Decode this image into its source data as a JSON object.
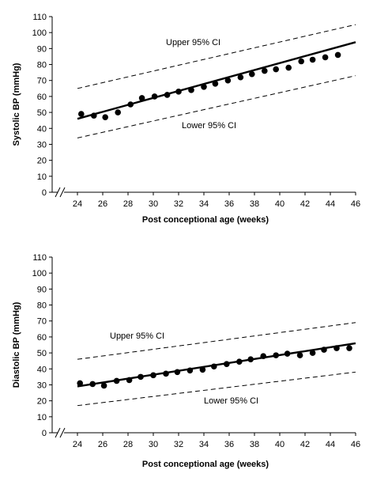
{
  "chart_data": [
    {
      "type": "scatter",
      "title": "",
      "xlabel": "Post conceptional age (weeks)",
      "ylabel": "Systolic BP (mmHg)",
      "xlim": [
        22,
        46
      ],
      "ylim": [
        0,
        110
      ],
      "xticks": [
        24,
        26,
        28,
        30,
        32,
        34,
        36,
        38,
        40,
        42,
        44,
        46
      ],
      "yticks": [
        0,
        10,
        20,
        30,
        40,
        50,
        60,
        70,
        80,
        90,
        100,
        110
      ],
      "axis_break": true,
      "grid": false,
      "series": [
        {
          "points": [
            [
              24.3,
              49
            ],
            [
              25.3,
              48
            ],
            [
              26.2,
              47
            ],
            [
              27.2,
              50
            ],
            [
              28.2,
              55
            ],
            [
              29.1,
              59
            ],
            [
              30.1,
              60
            ],
            [
              31.1,
              61
            ],
            [
              32.0,
              63
            ],
            [
              33.0,
              64
            ],
            [
              34.0,
              66
            ],
            [
              34.9,
              68
            ],
            [
              35.9,
              70
            ],
            [
              36.9,
              72
            ],
            [
              37.8,
              74
            ],
            [
              38.8,
              76
            ],
            [
              39.7,
              77
            ],
            [
              40.7,
              78
            ],
            [
              41.7,
              82
            ],
            [
              42.6,
              83
            ],
            [
              43.6,
              84.5
            ],
            [
              44.6,
              86
            ]
          ]
        }
      ],
      "fit_line": [
        [
          24,
          46
        ],
        [
          46,
          94
        ]
      ],
      "ci_upper": {
        "label": "Upper 95% CI",
        "line": [
          [
            24,
            65
          ],
          [
            46,
            105
          ]
        ]
      },
      "ci_lower": {
        "label": "Lower 95% CI",
        "line": [
          [
            24,
            34
          ],
          [
            46,
            73
          ]
        ]
      }
    },
    {
      "type": "scatter",
      "title": "",
      "xlabel": "Post conceptional age (weeks)",
      "ylabel": "Diastolic BP (mmHg)",
      "xlim": [
        22,
        46
      ],
      "ylim": [
        0,
        110
      ],
      "xticks": [
        24,
        26,
        28,
        30,
        32,
        34,
        36,
        38,
        40,
        42,
        44,
        46
      ],
      "yticks": [
        0,
        10,
        20,
        30,
        40,
        50,
        60,
        70,
        80,
        90,
        100,
        110
      ],
      "axis_break": true,
      "grid": false,
      "series": [
        {
          "points": [
            [
              24.2,
              31
            ],
            [
              25.2,
              30.5
            ],
            [
              26.1,
              29.5
            ],
            [
              27.1,
              32.5
            ],
            [
              28.1,
              33
            ],
            [
              29.0,
              35
            ],
            [
              30.0,
              36
            ],
            [
              31.0,
              37
            ],
            [
              31.9,
              38
            ],
            [
              32.9,
              39
            ],
            [
              33.9,
              39.5
            ],
            [
              34.8,
              41.5
            ],
            [
              35.8,
              43
            ],
            [
              36.8,
              44.5
            ],
            [
              37.7,
              46
            ],
            [
              38.7,
              48
            ],
            [
              39.7,
              48.5
            ],
            [
              40.6,
              49.5
            ],
            [
              41.6,
              48.5
            ],
            [
              42.6,
              50
            ],
            [
              43.5,
              52
            ],
            [
              44.5,
              53
            ],
            [
              45.5,
              53
            ]
          ]
        }
      ],
      "fit_line": [
        [
          24,
          29
        ],
        [
          46,
          56
        ]
      ],
      "ci_upper": {
        "label": "Upper 95% CI",
        "line": [
          [
            24,
            46
          ],
          [
            46,
            69
          ]
        ]
      },
      "ci_lower": {
        "label": "Lower 95% CI",
        "line": [
          [
            24,
            17
          ],
          [
            46,
            38
          ]
        ]
      }
    }
  ]
}
